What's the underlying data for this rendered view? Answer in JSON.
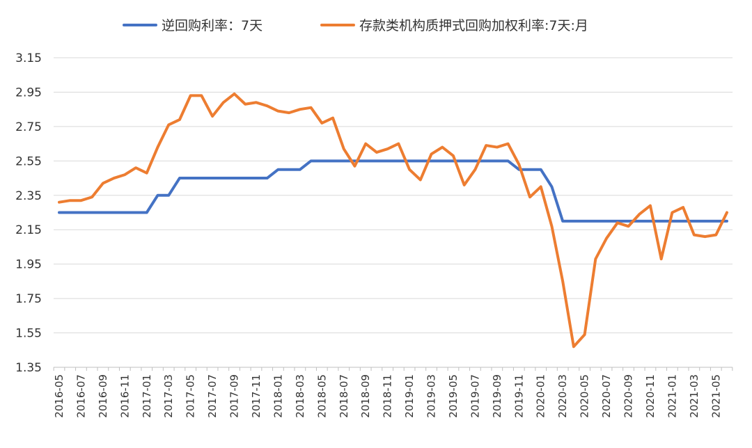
{
  "chart_data": {
    "type": "line",
    "title": "",
    "xlabel": "",
    "ylabel": "",
    "ylim": [
      1.35,
      3.15
    ],
    "yticks": [
      "3.15",
      "2.95",
      "2.75",
      "2.55",
      "2.35",
      "2.15",
      "1.95",
      "1.75",
      "1.55",
      "1.35"
    ],
    "grid": "horizontal",
    "legend": "top-center",
    "x": [
      "2016-05",
      "2016-06",
      "2016-07",
      "2016-08",
      "2016-09",
      "2016-10",
      "2016-11",
      "2016-12",
      "2017-01",
      "2017-02",
      "2017-03",
      "2017-04",
      "2017-05",
      "2017-06",
      "2017-07",
      "2017-08",
      "2017-09",
      "2017-10",
      "2017-11",
      "2017-12",
      "2018-01",
      "2018-02",
      "2018-03",
      "2018-04",
      "2018-05",
      "2018-06",
      "2018-07",
      "2018-08",
      "2018-09",
      "2018-10",
      "2018-11",
      "2018-12",
      "2019-01",
      "2019-02",
      "2019-03",
      "2019-04",
      "2019-05",
      "2019-06",
      "2019-07",
      "2019-08",
      "2019-09",
      "2019-10",
      "2019-11",
      "2019-12",
      "2020-01",
      "2020-02",
      "2020-03",
      "2020-04",
      "2020-05",
      "2020-06",
      "2020-07",
      "2020-08",
      "2020-09",
      "2020-10",
      "2020-11",
      "2020-12",
      "2021-01",
      "2021-02",
      "2021-03",
      "2021-04",
      "2021-05",
      "2021-06"
    ],
    "xticks": [
      "2016-05",
      "2016-07",
      "2016-09",
      "2016-11",
      "2017-01",
      "2017-03",
      "2017-05",
      "2017-07",
      "2017-09",
      "2017-11",
      "2018-01",
      "2018-03",
      "2018-05",
      "2018-07",
      "2018-09",
      "2018-11",
      "2019-01",
      "2019-03",
      "2019-05",
      "2019-07",
      "2019-09",
      "2019-11",
      "2020-01",
      "2020-03",
      "2020-05",
      "2020-07",
      "2020-09",
      "2020-11",
      "2021-01",
      "2021-03",
      "2021-05"
    ],
    "series": [
      {
        "name": "逆回购利率：7天",
        "color": "#4472C4",
        "values": [
          2.25,
          2.25,
          2.25,
          2.25,
          2.25,
          2.25,
          2.25,
          2.25,
          2.25,
          2.35,
          2.35,
          2.45,
          2.45,
          2.45,
          2.45,
          2.45,
          2.45,
          2.45,
          2.45,
          2.45,
          2.5,
          2.5,
          2.5,
          2.55,
          2.55,
          2.55,
          2.55,
          2.55,
          2.55,
          2.55,
          2.55,
          2.55,
          2.55,
          2.55,
          2.55,
          2.55,
          2.55,
          2.55,
          2.55,
          2.55,
          2.55,
          2.55,
          2.5,
          2.5,
          2.5,
          2.4,
          2.2,
          2.2,
          2.2,
          2.2,
          2.2,
          2.2,
          2.2,
          2.2,
          2.2,
          2.2,
          2.2,
          2.2,
          2.2,
          2.2,
          2.2,
          2.2
        ]
      },
      {
        "name": "存款类机构质押式回购加权利率:7天:月",
        "color": "#ED7D31",
        "values": [
          2.31,
          2.32,
          2.32,
          2.34,
          2.42,
          2.45,
          2.47,
          2.51,
          2.48,
          2.63,
          2.76,
          2.79,
          2.93,
          2.93,
          2.81,
          2.89,
          2.94,
          2.88,
          2.89,
          2.87,
          2.84,
          2.83,
          2.85,
          2.86,
          2.77,
          2.8,
          2.62,
          2.52,
          2.65,
          2.6,
          2.62,
          2.65,
          2.5,
          2.44,
          2.59,
          2.63,
          2.58,
          2.41,
          2.5,
          2.64,
          2.63,
          2.65,
          2.53,
          2.34,
          2.4,
          2.17,
          1.85,
          1.47,
          1.54,
          1.98,
          2.1,
          2.19,
          2.17,
          2.24,
          2.29,
          1.98,
          2.25,
          2.28,
          2.12,
          2.11,
          2.12,
          2.25
        ]
      }
    ]
  }
}
